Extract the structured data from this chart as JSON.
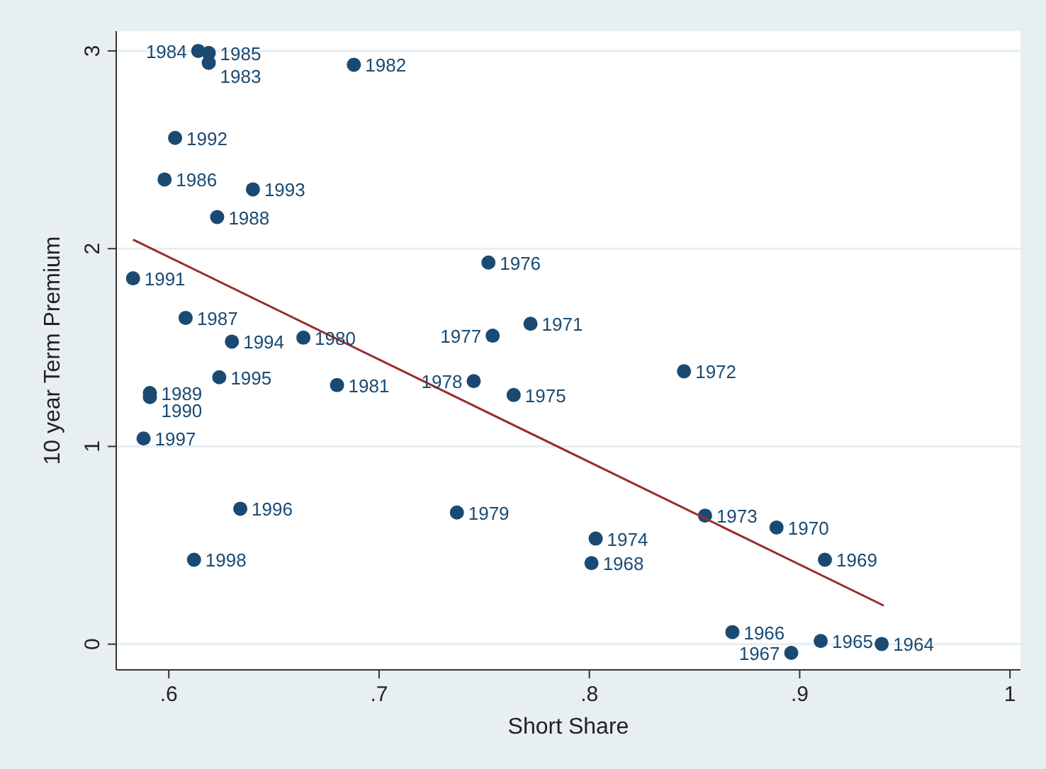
{
  "chart_data": {
    "type": "scatter",
    "xlabel": "Short Share",
    "ylabel": "10 year Term Premium",
    "xlim": [
      0.575,
      1.005
    ],
    "ylim": [
      -0.13,
      3.1
    ],
    "xticks": [
      {
        "value": 0.6,
        "label": ".6"
      },
      {
        "value": 0.7,
        "label": ".7"
      },
      {
        "value": 0.8,
        "label": ".8"
      },
      {
        "value": 0.9,
        "label": ".9"
      },
      {
        "value": 1,
        "label": "1"
      }
    ],
    "yticks": [
      0,
      1,
      2,
      3
    ],
    "grid": "y",
    "series": [
      {
        "type": "scatter",
        "color": "#1a4a72",
        "marker": "circle",
        "x": [
          0.614,
          0.619,
          0.619,
          0.688,
          0.603,
          0.598,
          0.64,
          0.623,
          0.583,
          0.608,
          0.63,
          0.664,
          0.624,
          0.591,
          0.591,
          0.68,
          0.588,
          0.634,
          0.612,
          0.752,
          0.772,
          0.754,
          0.745,
          0.764,
          0.845,
          0.737,
          0.803,
          0.801,
          0.855,
          0.889,
          0.912,
          0.868,
          0.91,
          0.896,
          0.939
        ],
        "values": [
          3.0,
          2.99,
          2.94,
          2.93,
          2.56,
          2.35,
          2.3,
          2.16,
          1.85,
          1.65,
          1.53,
          1.55,
          1.35,
          1.27,
          1.25,
          1.31,
          1.04,
          0.685,
          0.427,
          1.93,
          1.62,
          1.56,
          1.33,
          1.26,
          1.38,
          0.666,
          0.534,
          0.41,
          0.65,
          0.59,
          0.427,
          0.061,
          0.016,
          -0.044,
          0.001
        ]
      },
      {
        "type": "line",
        "color": "#9b2b2b",
        "line_style": "solid",
        "x": [
          0.583,
          0.94
        ],
        "values": [
          2.046,
          0.195
        ]
      }
    ],
    "annotations": [
      {
        "text": "1984",
        "x": 0.614,
        "y": 3.0
      },
      {
        "text": "1985",
        "x": 0.619,
        "y": 2.99
      },
      {
        "text": "1983",
        "x": 0.619,
        "y": 2.94
      },
      {
        "text": "1982",
        "x": 0.688,
        "y": 2.93
      },
      {
        "text": "1992",
        "x": 0.603,
        "y": 2.56
      },
      {
        "text": "1986",
        "x": 0.598,
        "y": 2.35
      },
      {
        "text": "1993",
        "x": 0.64,
        "y": 2.3
      },
      {
        "text": "1988",
        "x": 0.623,
        "y": 2.16
      },
      {
        "text": "1991",
        "x": 0.583,
        "y": 1.85
      },
      {
        "text": "1987",
        "x": 0.608,
        "y": 1.65
      },
      {
        "text": "1994",
        "x": 0.63,
        "y": 1.53
      },
      {
        "text": "1980",
        "x": 0.664,
        "y": 1.55
      },
      {
        "text": "1995",
        "x": 0.624,
        "y": 1.35
      },
      {
        "text": "1989",
        "x": 0.591,
        "y": 1.27
      },
      {
        "text": "1990",
        "x": 0.591,
        "y": 1.25
      },
      {
        "text": "1981",
        "x": 0.68,
        "y": 1.31
      },
      {
        "text": "1997",
        "x": 0.588,
        "y": 1.04
      },
      {
        "text": "1996",
        "x": 0.634,
        "y": 0.685
      },
      {
        "text": "1998",
        "x": 0.612,
        "y": 0.427
      },
      {
        "text": "1976",
        "x": 0.752,
        "y": 1.93
      },
      {
        "text": "1971",
        "x": 0.772,
        "y": 1.62
      },
      {
        "text": "1977",
        "x": 0.754,
        "y": 1.56
      },
      {
        "text": "1978",
        "x": 0.745,
        "y": 1.33
      },
      {
        "text": "1975",
        "x": 0.764,
        "y": 1.26
      },
      {
        "text": "1972",
        "x": 0.845,
        "y": 1.38
      },
      {
        "text": "1979",
        "x": 0.737,
        "y": 0.666
      },
      {
        "text": "1974",
        "x": 0.803,
        "y": 0.534
      },
      {
        "text": "1968",
        "x": 0.801,
        "y": 0.41
      },
      {
        "text": "1973",
        "x": 0.855,
        "y": 0.65
      },
      {
        "text": "1970",
        "x": 0.889,
        "y": 0.59
      },
      {
        "text": "1969",
        "x": 0.912,
        "y": 0.427
      },
      {
        "text": "1966",
        "x": 0.868,
        "y": 0.061
      },
      {
        "text": "1965",
        "x": 0.91,
        "y": 0.016
      },
      {
        "text": "1967",
        "x": 0.896,
        "y": -0.044
      },
      {
        "text": "1964",
        "x": 0.939,
        "y": 0.001
      }
    ]
  }
}
